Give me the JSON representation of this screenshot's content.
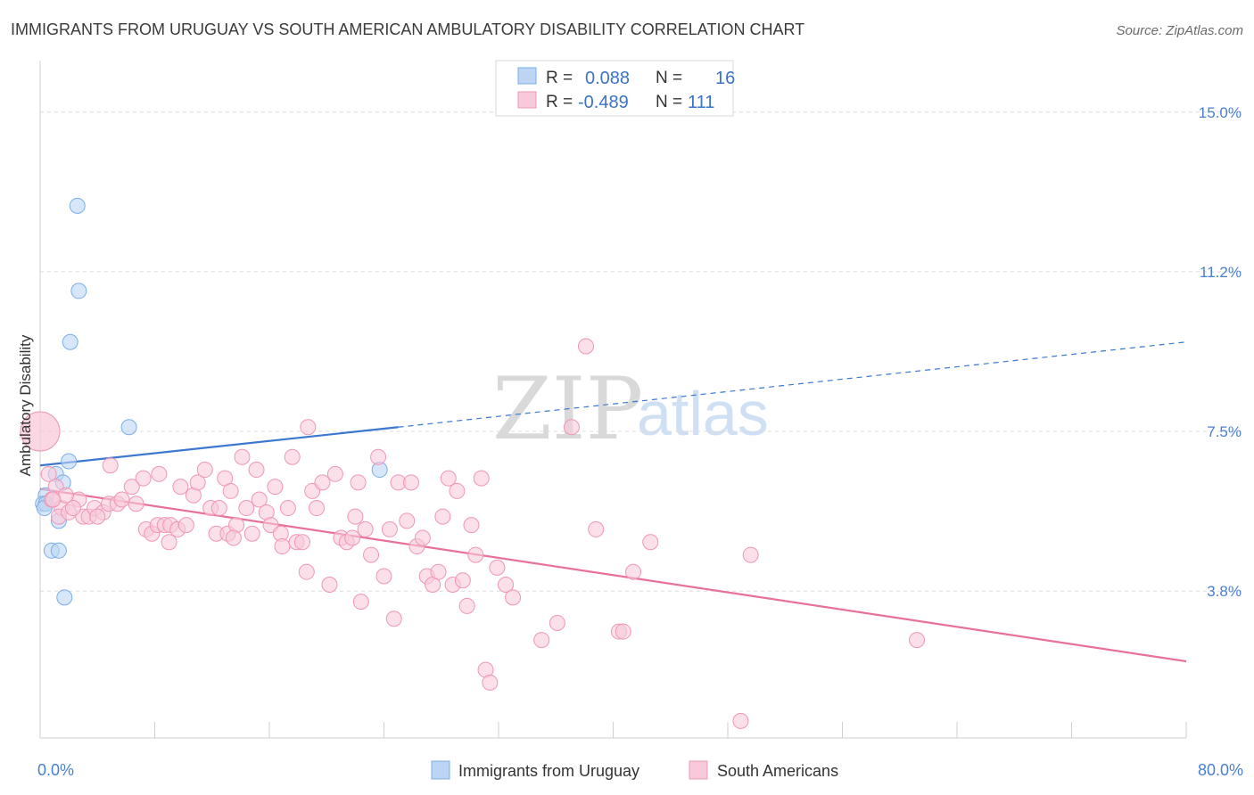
{
  "chart_data": {
    "type": "scatter",
    "title": "IMMIGRANTS FROM URUGUAY VS SOUTH AMERICAN AMBULATORY DISABILITY CORRELATION CHART",
    "source": "Source: ZipAtlas.com",
    "ylabel": "Ambulatory Disability",
    "xlim": [
      0,
      80
    ],
    "ylim": [
      0.3,
      16.0
    ],
    "y_ticks": [
      {
        "value": 15.0,
        "label": "15.0%"
      },
      {
        "value": 11.25,
        "label": "11.2%"
      },
      {
        "value": 7.5,
        "label": "7.5%"
      },
      {
        "value": 3.75,
        "label": "3.8%"
      }
    ],
    "x_tick_labels": [
      {
        "value": 0,
        "label": "0.0%"
      },
      {
        "value": 80,
        "label": "80.0%"
      }
    ],
    "x_minor_ticks": [
      8,
      16,
      24,
      32,
      40,
      48,
      56,
      64,
      72,
      80
    ],
    "grid": true,
    "watermark": {
      "part1": "ZIP",
      "part2": "atlas"
    },
    "stats_legend": {
      "rows": [
        {
          "r_label": "R =",
          "r_value": "0.088",
          "n_label": "N =",
          "n_value": "16"
        },
        {
          "r_label": "R =",
          "r_value": "-0.489",
          "n_label": "N =",
          "n_value": "111"
        }
      ]
    },
    "series": [
      {
        "name": "Immigrants from Uruguay",
        "color": "#7aaee8",
        "fill": "#bcd5f3",
        "trend": {
          "x0": 0,
          "y0": 6.7,
          "x1": 25,
          "y1": 7.6,
          "dash_to_x": 80,
          "dash_to_y": 9.6,
          "color": "#3b78d0"
        },
        "points": [
          [
            2.6,
            12.8
          ],
          [
            2.7,
            10.8
          ],
          [
            2.1,
            9.6
          ],
          [
            6.2,
            7.6
          ],
          [
            2.0,
            6.8
          ],
          [
            1.1,
            6.5
          ],
          [
            1.6,
            6.3
          ],
          [
            0.4,
            6.0
          ],
          [
            0.2,
            5.8
          ],
          [
            0.4,
            5.8
          ],
          [
            0.3,
            5.7
          ],
          [
            1.3,
            5.4
          ],
          [
            0.8,
            4.7
          ],
          [
            1.3,
            4.7
          ],
          [
            1.7,
            3.6
          ],
          [
            23.7,
            6.6
          ]
        ]
      },
      {
        "name": "South Americans",
        "color": "#ef96b6",
        "fill": "#f8c9da",
        "trend": {
          "x0": 0,
          "y0": 6.15,
          "x1": 80,
          "y1": 2.1,
          "color": "#e8709c"
        },
        "points": [
          [
            0.0,
            7.5
          ],
          [
            0.6,
            6.5
          ],
          [
            1.1,
            6.2
          ],
          [
            0.8,
            5.9
          ],
          [
            1.5,
            5.7
          ],
          [
            1.3,
            5.5
          ],
          [
            2.0,
            5.6
          ],
          [
            2.7,
            5.9
          ],
          [
            3.0,
            5.5
          ],
          [
            3.4,
            5.5
          ],
          [
            3.8,
            5.7
          ],
          [
            4.4,
            5.6
          ],
          [
            4.8,
            5.8
          ],
          [
            5.4,
            5.8
          ],
          [
            5.7,
            5.9
          ],
          [
            6.7,
            5.8
          ],
          [
            4.9,
            6.7
          ],
          [
            6.4,
            6.2
          ],
          [
            7.2,
            6.4
          ],
          [
            8.3,
            6.5
          ],
          [
            7.4,
            5.2
          ],
          [
            7.8,
            5.1
          ],
          [
            8.2,
            5.3
          ],
          [
            8.7,
            5.3
          ],
          [
            9.1,
            5.3
          ],
          [
            9.6,
            5.2
          ],
          [
            9.0,
            4.9
          ],
          [
            10.2,
            5.3
          ],
          [
            10.7,
            6.0
          ],
          [
            11.0,
            6.3
          ],
          [
            11.5,
            6.6
          ],
          [
            11.9,
            5.7
          ],
          [
            12.3,
            5.1
          ],
          [
            12.5,
            5.7
          ],
          [
            12.9,
            6.4
          ],
          [
            13.1,
            5.1
          ],
          [
            13.3,
            6.1
          ],
          [
            13.7,
            5.3
          ],
          [
            14.1,
            6.9
          ],
          [
            14.4,
            5.7
          ],
          [
            14.8,
            5.1
          ],
          [
            15.1,
            6.6
          ],
          [
            15.3,
            5.9
          ],
          [
            15.8,
            5.6
          ],
          [
            16.1,
            5.3
          ],
          [
            16.4,
            6.2
          ],
          [
            16.8,
            5.1
          ],
          [
            17.3,
            5.7
          ],
          [
            17.6,
            6.9
          ],
          [
            17.9,
            4.9
          ],
          [
            18.3,
            4.9
          ],
          [
            18.6,
            4.2
          ],
          [
            19.0,
            6.1
          ],
          [
            19.3,
            5.7
          ],
          [
            19.7,
            6.3
          ],
          [
            18.7,
            7.6
          ],
          [
            20.2,
            3.9
          ],
          [
            20.6,
            6.5
          ],
          [
            21.0,
            5.0
          ],
          [
            21.4,
            4.9
          ],
          [
            21.8,
            5.0
          ],
          [
            22.0,
            5.5
          ],
          [
            22.2,
            6.3
          ],
          [
            22.4,
            3.5
          ],
          [
            22.7,
            5.2
          ],
          [
            23.1,
            4.6
          ],
          [
            23.6,
            6.9
          ],
          [
            24.0,
            4.1
          ],
          [
            24.4,
            5.2
          ],
          [
            24.7,
            3.1
          ],
          [
            25.0,
            6.3
          ],
          [
            25.6,
            5.4
          ],
          [
            25.9,
            6.3
          ],
          [
            26.3,
            4.8
          ],
          [
            26.7,
            5.0
          ],
          [
            27.0,
            4.1
          ],
          [
            27.4,
            3.9
          ],
          [
            27.8,
            4.2
          ],
          [
            28.1,
            5.5
          ],
          [
            28.5,
            6.4
          ],
          [
            28.8,
            3.9
          ],
          [
            29.1,
            6.1
          ],
          [
            29.5,
            4.0
          ],
          [
            29.8,
            3.4
          ],
          [
            30.1,
            5.3
          ],
          [
            30.4,
            4.6
          ],
          [
            30.8,
            6.4
          ],
          [
            31.1,
            1.9
          ],
          [
            31.4,
            1.6
          ],
          [
            31.9,
            4.3
          ],
          [
            32.5,
            3.9
          ],
          [
            33.0,
            3.6
          ],
          [
            35.0,
            2.6
          ],
          [
            36.1,
            3.0
          ],
          [
            37.1,
            7.6
          ],
          [
            38.1,
            9.5
          ],
          [
            38.8,
            5.2
          ],
          [
            40.4,
            2.8
          ],
          [
            40.7,
            2.8
          ],
          [
            41.4,
            4.2
          ],
          [
            42.6,
            4.9
          ],
          [
            48.9,
            0.7
          ],
          [
            49.6,
            4.6
          ],
          [
            61.2,
            2.6
          ],
          [
            2.3,
            5.7
          ],
          [
            1.8,
            6.0
          ],
          [
            4.0,
            5.5
          ],
          [
            9.8,
            6.2
          ],
          [
            13.5,
            5.0
          ],
          [
            16.9,
            4.8
          ],
          [
            0.9,
            5.9
          ]
        ]
      }
    ]
  }
}
